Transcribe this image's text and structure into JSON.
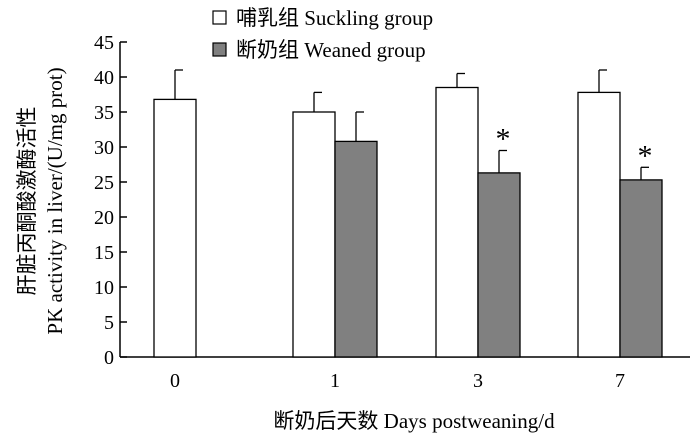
{
  "chart_data": {
    "type": "bar",
    "title": "",
    "xlabel": "断奶后天数 Days postweaning/d",
    "ylabel_line1": "肝脏丙酮酸激酶活性",
    "ylabel_line2": "PK activity in liver/(U/mg prot)",
    "categories": [
      "0",
      "1",
      "3",
      "7"
    ],
    "ylim": [
      0,
      45
    ],
    "yticks": [
      0,
      5,
      10,
      15,
      20,
      25,
      30,
      35,
      40,
      45
    ],
    "legend_position": "top",
    "series": [
      {
        "name": "哺乳组 Suckling group",
        "color": "#ffffff",
        "values": [
          36.8,
          35.0,
          38.5,
          37.8
        ],
        "errors": [
          4.2,
          2.8,
          2.0,
          3.2
        ],
        "significance": [
          "",
          "",
          "",
          ""
        ]
      },
      {
        "name": "断奶组 Weaned group",
        "color": "#808080",
        "values": [
          null,
          30.8,
          26.3,
          25.3
        ],
        "errors": [
          null,
          4.2,
          3.2,
          1.8
        ],
        "significance": [
          "",
          "",
          "*",
          "*"
        ]
      }
    ]
  }
}
